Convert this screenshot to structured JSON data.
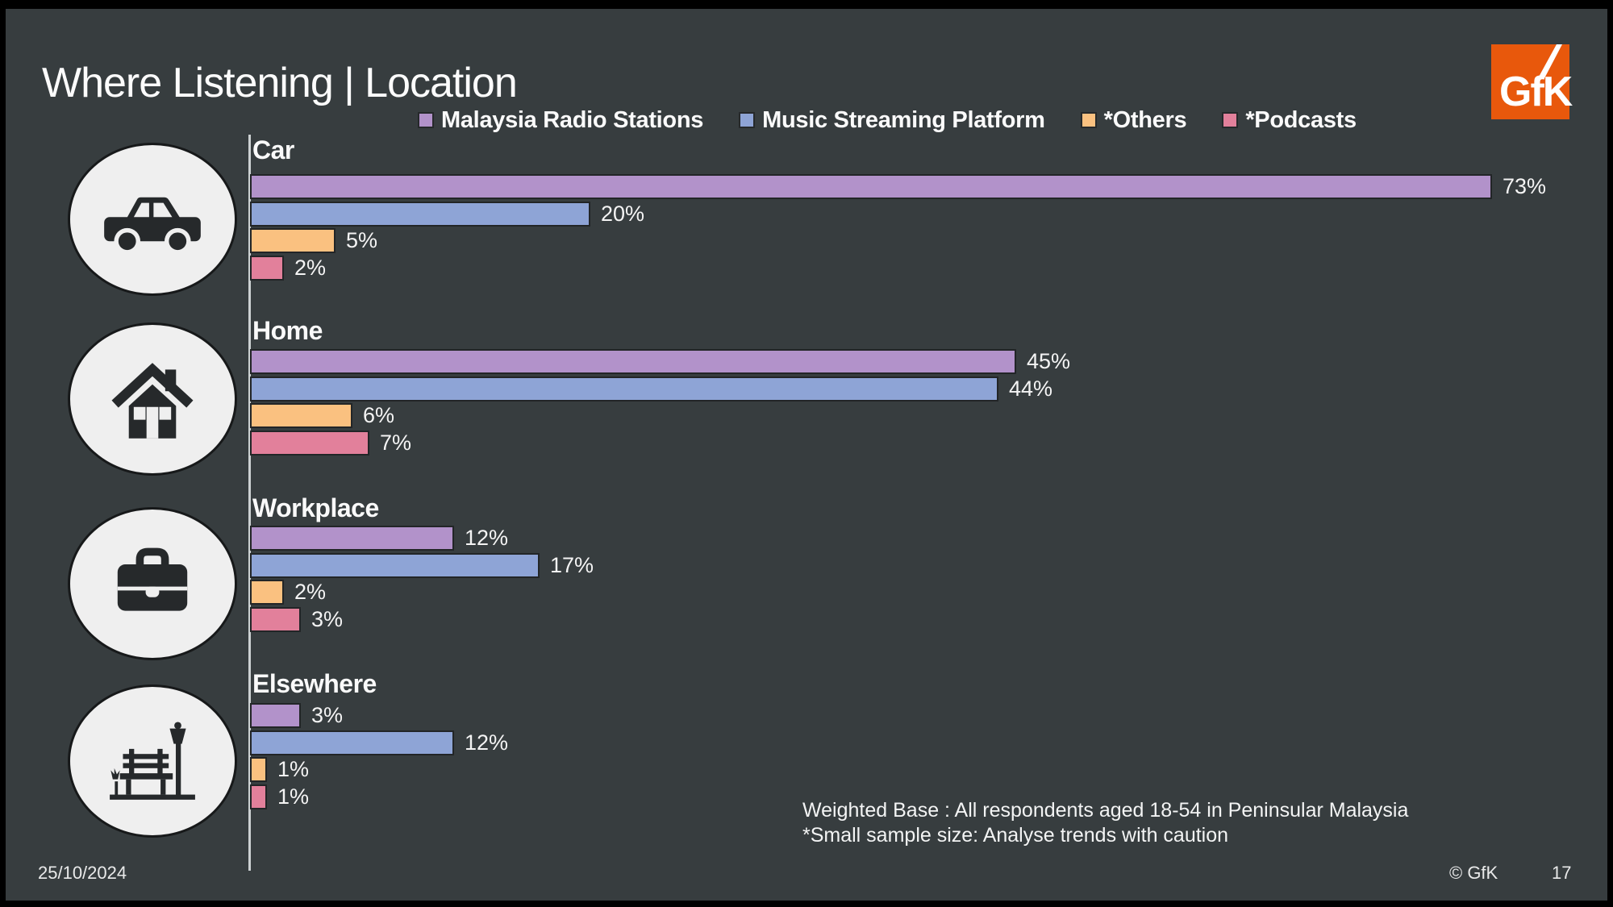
{
  "slide": {
    "title": "Where Listening | Location",
    "footnotes": {
      "line1": "Weighted Base : All respondents aged 18-54 in Peninsular Malaysia",
      "line2": "*Small sample size: Analyse trends with caution"
    },
    "footer": {
      "date": "25/10/2024",
      "copyright": "© GfK",
      "page": "17"
    },
    "logo": {
      "text": "GfK",
      "color": "#e8580c"
    },
    "colors": {
      "background": "#373d3f",
      "frame": "#000000",
      "axis_line": "#ccd1d2",
      "icon_circle_fill": "#efefef",
      "icon_glyph": "#26292b"
    }
  },
  "chart_data": {
    "type": "bar",
    "orientation": "horizontal",
    "title": "Where Listening | Location",
    "legend_position": "top",
    "grid": false,
    "value_suffix": "%",
    "xlim": [
      0,
      80
    ],
    "categories": [
      "Car",
      "Home",
      "Workplace",
      "Elsewhere"
    ],
    "category_icons": [
      "car-icon",
      "house-icon",
      "briefcase-icon",
      "park-bench-icon"
    ],
    "series": [
      {
        "name": "Malaysia Radio Stations",
        "color": "#b292ca",
        "values": [
          73,
          45,
          12,
          3
        ]
      },
      {
        "name": "Music Streaming Platform",
        "color": "#8ea4d6",
        "values": [
          20,
          44,
          17,
          12
        ]
      },
      {
        "name": "*Others",
        "color": "#fac180",
        "values": [
          5,
          6,
          2,
          1
        ]
      },
      {
        "name": "*Podcasts",
        "color": "#e2809b",
        "values": [
          2,
          7,
          3,
          1
        ]
      }
    ]
  }
}
